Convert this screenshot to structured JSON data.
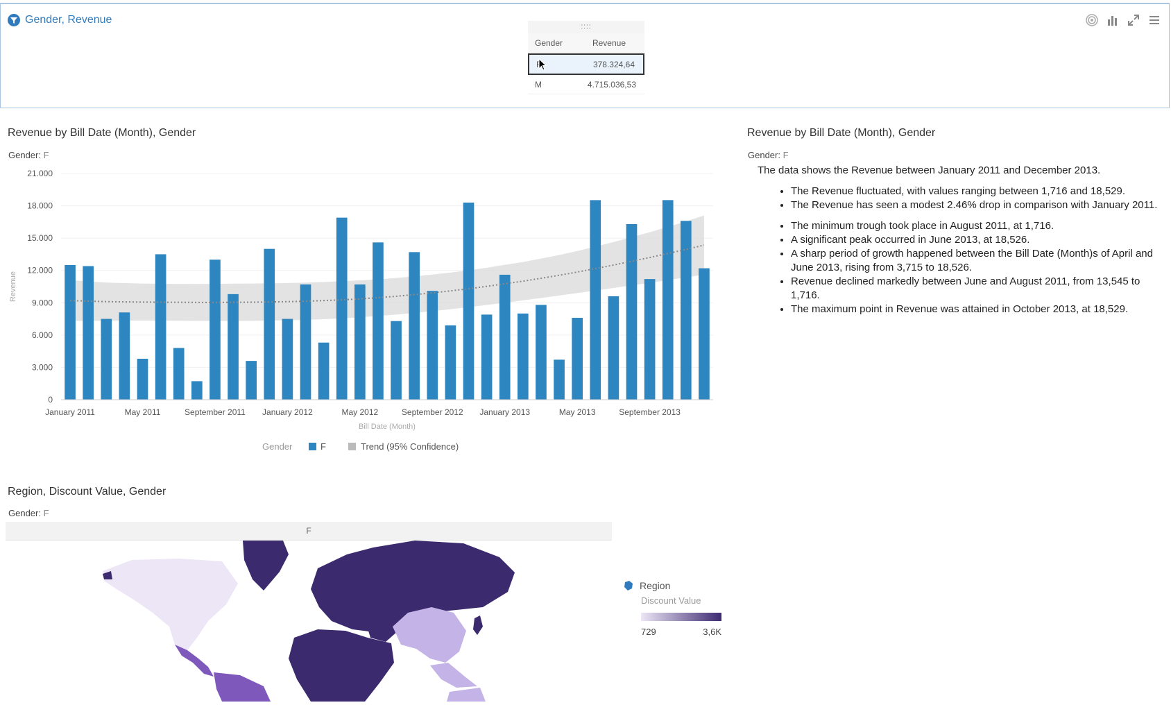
{
  "top_panel": {
    "filter_title": "Gender, Revenue",
    "table": {
      "headers": [
        "Gender",
        "Revenue"
      ],
      "rows": [
        {
          "gender": "F",
          "revenue": "378.324,64"
        },
        {
          "gender": "M",
          "revenue": "4.715.036,53"
        }
      ],
      "grip": "::::"
    }
  },
  "bar_section": {
    "title": "Revenue by Bill Date (Month), Gender",
    "filter_label": "Gender:",
    "filter_value": "F"
  },
  "insights_section": {
    "title": "Revenue by Bill Date (Month), Gender",
    "filter_label": "Gender:",
    "filter_value": "F",
    "intro": "The data shows the Revenue between January 2011 and December 2013.",
    "bullets_1": [
      "The Revenue fluctuated, with values ranging between 1,716 and 18,529.",
      "The Revenue has seen a modest 2.46% drop in comparison with January 2011."
    ],
    "bullets_2": [
      "The minimum trough took place in August 2011, at 1,716.",
      "A significant peak occurred in June 2013, at 18,526.",
      "A sharp period of growth happened between the Bill Date (Month)s of April and June 2013, rising from 3,715 to 18,526.",
      "Revenue declined markedly between June and August 2011, from 13,545 to 1,716.",
      "The maximum point in Revenue was attained in October 2013, at 18,529."
    ]
  },
  "map_section": {
    "title": "Region, Discount Value, Gender",
    "filter_label": "Gender:",
    "filter_value": "F",
    "panel_header": "F",
    "legend": {
      "title": "Region",
      "measure": "Discount Value",
      "min": "729",
      "max": "3,6K"
    }
  },
  "colors": {
    "bar": "#2e86c1",
    "accent": "#2f7bbd",
    "trend_band": "#dcdcdc",
    "map_dark": "#3b2a6e",
    "map_mid": "#7e58bb",
    "map_light": "#c4b3e6",
    "map_lightest": "#ece6f6"
  },
  "chart_data": {
    "type": "bar",
    "categories": [
      "Jan 2011",
      "Feb 2011",
      "Mar 2011",
      "Apr 2011",
      "May 2011",
      "Jun 2011",
      "Jul 2011",
      "Aug 2011",
      "Sep 2011",
      "Oct 2011",
      "Nov 2011",
      "Dec 2011",
      "Jan 2012",
      "Feb 2012",
      "Mar 2012",
      "Apr 2012",
      "May 2012",
      "Jun 2012",
      "Jul 2012",
      "Aug 2012",
      "Sep 2012",
      "Oct 2012",
      "Nov 2012",
      "Dec 2012",
      "Jan 2013",
      "Feb 2013",
      "Mar 2013",
      "Apr 2013",
      "May 2013",
      "Jun 2013",
      "Jul 2013",
      "Aug 2013",
      "Sep 2013",
      "Oct 2013",
      "Nov 2013",
      "Dec 2013"
    ],
    "tick_labels": [
      "January 2011",
      "May 2011",
      "September 2011",
      "January 2012",
      "May 2012",
      "September 2012",
      "January 2013",
      "May 2013",
      "September 2013"
    ],
    "tick_label_indices": [
      0,
      4,
      8,
      12,
      16,
      20,
      24,
      28,
      32
    ],
    "series": [
      {
        "name": "F",
        "values": [
          12500,
          12400,
          7500,
          8100,
          3800,
          13500,
          4800,
          1716,
          13000,
          9800,
          3600,
          14000,
          7500,
          10700,
          5300,
          16900,
          10700,
          14600,
          7300,
          13700,
          10100,
          6900,
          18300,
          7900,
          11600,
          8000,
          8800,
          3715,
          7600,
          18526,
          9600,
          16300,
          11200,
          18529,
          16600,
          12200
        ]
      }
    ],
    "trend": {
      "name": "Trend (95% Confidence)",
      "center": [
        9200,
        9150,
        9100,
        9080,
        9060,
        9050,
        9040,
        9030,
        9030,
        9040,
        9050,
        9070,
        9100,
        9140,
        9200,
        9270,
        9360,
        9470,
        9600,
        9750,
        9920,
        10100,
        10300,
        10520,
        10760,
        11000,
        11270,
        11550,
        11850,
        12170,
        12500,
        12850,
        13200,
        13570,
        13950,
        14350
      ],
      "lower": [
        7300,
        7320,
        7330,
        7340,
        7340,
        7340,
        7330,
        7320,
        7310,
        7310,
        7320,
        7340,
        7370,
        7410,
        7470,
        7550,
        7650,
        7770,
        7900,
        8050,
        8220,
        8400,
        8590,
        8790,
        9000,
        9220,
        9440,
        9670,
        9900,
        10130,
        10370,
        10610,
        10850,
        11100,
        11350,
        11600
      ],
      "upper": [
        11100,
        10980,
        10870,
        10820,
        10780,
        10760,
        10750,
        10740,
        10750,
        10770,
        10780,
        10800,
        10830,
        10870,
        10930,
        11000,
        11080,
        11170,
        11300,
        11450,
        11620,
        11800,
        12010,
        12250,
        12520,
        12780,
        13100,
        13430,
        13800,
        14210,
        14630,
        15090,
        15550,
        16040,
        16550,
        17100
      ]
    },
    "xlabel": "Bill Date (Month)",
    "ylabel": "Revenue",
    "yticks": [
      "0",
      "3.000",
      "6.000",
      "9.000",
      "12.000",
      "15.000",
      "18.000",
      "21.000"
    ],
    "ylim": [
      0,
      21000
    ],
    "legend": {
      "title": "Gender",
      "entries": [
        "F",
        "Trend (95% Confidence)"
      ]
    },
    "grid": true
  }
}
